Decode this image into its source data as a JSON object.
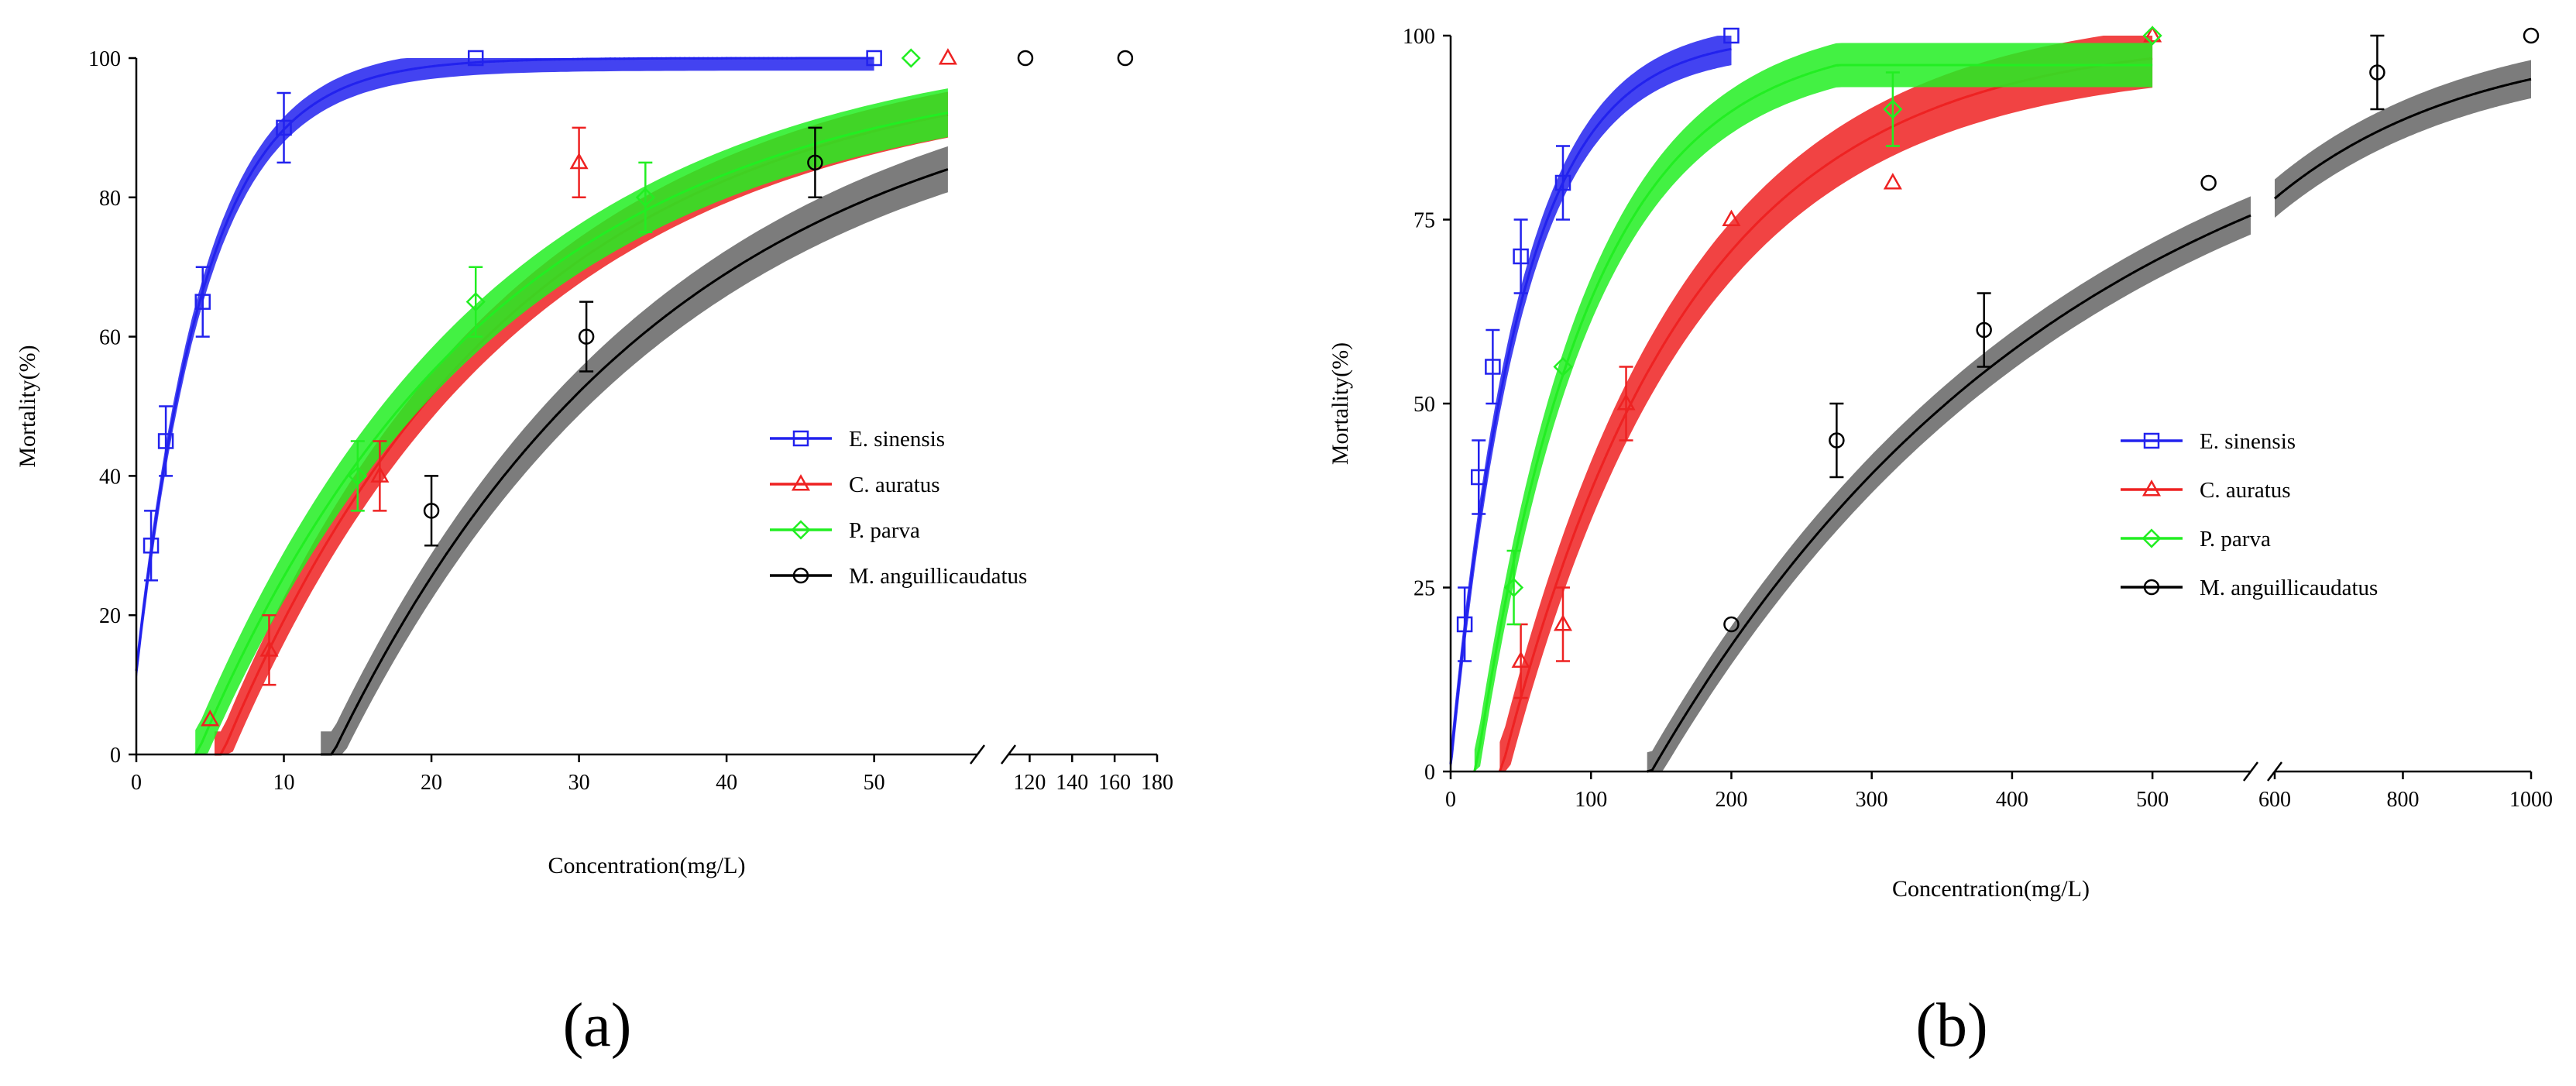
{
  "figure_labels": {
    "a": "(a)",
    "b": "(b)"
  },
  "chart_data": [
    {
      "id": "a",
      "type": "line",
      "xlabel": "Concentration(mg/L)",
      "ylabel": "Mortality(%)",
      "ylim": [
        0,
        100
      ],
      "yticks": [
        0,
        20,
        40,
        60,
        80,
        100
      ],
      "xaxis_segments": [
        {
          "xlim": [
            0,
            57
          ],
          "ticks": [
            0,
            10,
            20,
            30,
            40,
            50
          ]
        },
        {
          "xlim": [
            110,
            180
          ],
          "ticks": [
            120,
            140,
            160,
            180
          ]
        }
      ],
      "grid": false,
      "legend_position": "right-middle",
      "series": [
        {
          "name": "E. sinensis",
          "color": "#2222ee",
          "marker": "square",
          "points": [
            [
              1,
              30
            ],
            [
              2,
              45
            ],
            [
              4.5,
              65
            ],
            [
              10,
              90
            ],
            [
              23,
              100
            ],
            [
              50,
              100
            ]
          ],
          "errors": [
            5,
            5,
            5,
            5,
            0,
            0
          ],
          "fit": {
            "kind": "exp",
            "y0": 12,
            "k": 0.215,
            "from": 0,
            "to": 50,
            "band": 1.8
          }
        },
        {
          "name": "C. auratus",
          "color": "#ee2222",
          "marker": "triangle",
          "points": [
            [
              5,
              5
            ],
            [
              9,
              15
            ],
            [
              16.5,
              40
            ],
            [
              30,
              85
            ],
            [
              55,
              100
            ]
          ],
          "errors": [
            0,
            5,
            5,
            5,
            0
          ],
          "fit": {
            "kind": "exp",
            "x0": 5.8,
            "k": 0.051,
            "from": 5.3,
            "to": 55,
            "band": 3.3
          }
        },
        {
          "name": "P. parva",
          "color": "#22ee22",
          "marker": "diamond",
          "points": [
            [
              15,
              40
            ],
            [
              23,
              65
            ],
            [
              34.5,
              80
            ],
            [
              52.5,
              100
            ]
          ],
          "errors": [
            5,
            5,
            5,
            0
          ],
          "fit": {
            "kind": "exp",
            "x0": 4.1,
            "k": 0.05,
            "from": 4,
            "to": 55,
            "band": 3.5
          }
        },
        {
          "name": "M. anguillicaudatus",
          "color": "#111111",
          "marker": "circle",
          "points": [
            [
              20,
              35
            ],
            [
              30.5,
              60
            ],
            [
              46,
              85
            ],
            [
              118,
              100
            ],
            [
              165,
              100
            ]
          ],
          "errors": [
            5,
            5,
            5,
            0,
            0
          ],
          "fit": {
            "kind": "exp",
            "x0": 13.3,
            "k": 0.044,
            "from": 12.5,
            "to": 55,
            "band": 3.3
          }
        }
      ]
    },
    {
      "id": "b",
      "type": "line",
      "xlabel": "Concentration(mg/L)",
      "ylabel": "Mortality(%)",
      "ylim": [
        0,
        100
      ],
      "yticks": [
        0,
        25,
        50,
        75,
        100
      ],
      "xaxis_segments": [
        {
          "xlim": [
            0,
            570
          ],
          "ticks": [
            0,
            100,
            200,
            300,
            400,
            500
          ]
        },
        {
          "xlim": [
            600,
            1000
          ],
          "ticks": [
            600,
            800,
            1000
          ]
        }
      ],
      "grid": false,
      "legend_position": "right-middle",
      "series": [
        {
          "name": "E. sinensis",
          "color": "#2222ee",
          "marker": "square",
          "points": [
            [
              10,
              20
            ],
            [
              20,
              40
            ],
            [
              30,
              55
            ],
            [
              50,
              70
            ],
            [
              80,
              80
            ],
            [
              200,
              100
            ]
          ],
          "errors": [
            5,
            5,
            5,
            5,
            5,
            0
          ],
          "fit": {
            "kind": "exp",
            "y0": 1,
            "k": 0.02,
            "from": 0,
            "to": 200,
            "band": 2.2
          }
        },
        {
          "name": "C. auratus",
          "color": "#ee2222",
          "marker": "triangle",
          "points": [
            [
              50,
              15
            ],
            [
              80,
              20
            ],
            [
              125,
              50
            ],
            [
              200,
              75
            ],
            [
              315,
              80
            ],
            [
              500,
              100
            ]
          ],
          "errors": [
            5,
            5,
            5,
            0,
            0,
            0
          ],
          "fit": {
            "kind": "exp",
            "x0": 36,
            "k": 0.0075,
            "from": 35,
            "to": 500,
            "band": 4
          }
        },
        {
          "name": "P. parva",
          "color": "#22ee22",
          "marker": "diamond",
          "points": [
            [
              45,
              25
            ],
            [
              80,
              55
            ],
            [
              315,
              90
            ],
            [
              500,
              100
            ]
          ],
          "errors": [
            5,
            0,
            5,
            0
          ],
          "fit": {
            "kind": "exp",
            "x0": 18,
            "k": 0.0125,
            "from": 17,
            "to": 500,
            "cap": 96,
            "band": 3
          }
        },
        {
          "name": "M. anguillicaudatus",
          "color": "#111111",
          "marker": "circle",
          "points": [
            [
              200,
              20
            ],
            [
              275,
              45
            ],
            [
              380,
              60
            ],
            [
              540,
              80
            ],
            [
              760,
              95
            ],
            [
              1000,
              100
            ]
          ],
          "errors": [
            0,
            5,
            5,
            0,
            5,
            0
          ],
          "fit": {
            "kind": "exp",
            "x0": 143,
            "k": 0.0033,
            "from": 140,
            "to": 1000,
            "band": 2.6
          }
        }
      ]
    }
  ]
}
